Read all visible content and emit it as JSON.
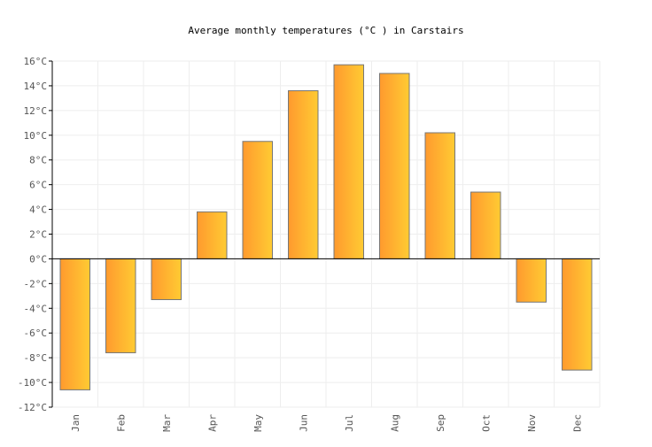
{
  "chart_data": {
    "type": "bar",
    "title": "Average monthly temperatures (°C ) in Carstairs",
    "xlabel": "",
    "ylabel": "",
    "categories": [
      "Jan",
      "Feb",
      "Mar",
      "Apr",
      "May",
      "Jun",
      "Jul",
      "Aug",
      "Sep",
      "Oct",
      "Nov",
      "Dec"
    ],
    "values": [
      -10.6,
      -7.6,
      -3.3,
      3.8,
      9.5,
      13.6,
      15.7,
      15.0,
      10.2,
      5.4,
      -3.5,
      -9.0
    ],
    "ylim": [
      -12,
      16
    ],
    "yticks": [
      "16°C",
      "14°C",
      "12°C",
      "10°C",
      "8°C",
      "6°C",
      "4°C",
      "2°C",
      "0°C",
      "-2°C",
      "-4°C",
      "-6°C",
      "-8°C",
      "-10°C",
      "-12°C"
    ],
    "grid": true,
    "legend": "none",
    "colors": {
      "bar_start": "#ff9a2e",
      "bar_end": "#ffcb33",
      "bar_stroke": "#777777",
      "grid": "#eeeeee"
    }
  }
}
